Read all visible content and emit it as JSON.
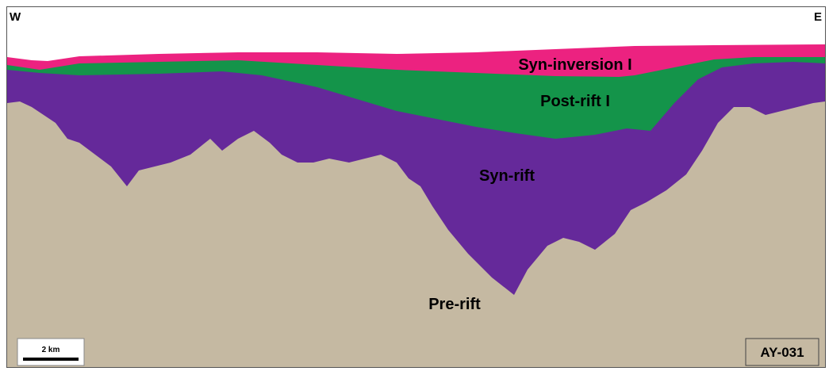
{
  "section": {
    "west": "W",
    "east": "E",
    "line_name": "AY-031",
    "scale": "2 km"
  },
  "units": {
    "syn_inversion": "Syn-inversion I",
    "post_rift": "Post-rift I",
    "syn_rift": "Syn-rift",
    "pre_rift": "Pre-rift"
  }
}
